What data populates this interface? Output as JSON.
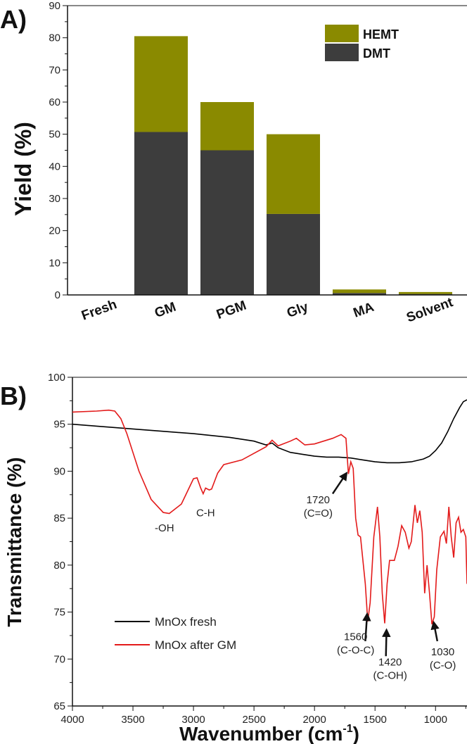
{
  "chart_data": [
    {
      "type": "bar",
      "stacked": true,
      "panel_label": "A)",
      "title": "",
      "xlabel": "",
      "ylabel": "Yield (%)",
      "ylim": [
        0,
        90
      ],
      "yticks": [
        "0",
        "10",
        "20",
        "30",
        "40",
        "50",
        "60",
        "70",
        "80",
        "90"
      ],
      "categories": [
        "Fresh",
        "GM",
        "PGM",
        "Gly",
        "MA",
        "Solvent"
      ],
      "series": [
        {
          "name": "DMT",
          "color": "#3d3d3d",
          "values": [
            0,
            50.7,
            45.0,
            25.2,
            0.6,
            0.3
          ]
        },
        {
          "name": "HEMT",
          "color": "#8a8a00",
          "values": [
            0,
            29.8,
            15.0,
            24.8,
            1.1,
            0.6
          ]
        }
      ],
      "legend": {
        "placement": "top-right",
        "entries": [
          "HEMT",
          "DMT"
        ]
      },
      "grid": false
    },
    {
      "type": "line",
      "panel_label": "B)",
      "xlabel": "Wavenumber (cm",
      "xlabel_sup": "-1",
      "xlabel_end": ")",
      "ylabel": "Transmittance (%)",
      "xlim": [
        4000,
        740
      ],
      "ylim": [
        65,
        100
      ],
      "xticks": [
        "4000",
        "3500",
        "3000",
        "2500",
        "2000",
        "1500",
        "1000"
      ],
      "yticks": [
        "65",
        "70",
        "75",
        "80",
        "85",
        "90",
        "95",
        "100"
      ],
      "grid": false,
      "legend": {
        "placement": "bottom-left",
        "entries": [
          "MnOx fresh",
          "MnOx after GM"
        ]
      },
      "series": [
        {
          "name": "MnOx fresh",
          "color": "#000000",
          "x": [
            4000,
            3800,
            3500,
            3200,
            3000,
            2700,
            2500,
            2400,
            2350,
            2300,
            2200,
            2100,
            2000,
            1900,
            1800,
            1700,
            1600,
            1500,
            1400,
            1300,
            1200,
            1100,
            1050,
            1000,
            950,
            900,
            850,
            800,
            770,
            740
          ],
          "y": [
            95,
            94.8,
            94.5,
            94.2,
            94,
            93.6,
            93.2,
            92.8,
            93.0,
            92.5,
            92.0,
            91.8,
            91.6,
            91.5,
            91.5,
            91.4,
            91.2,
            91.0,
            90.9,
            90.9,
            91.0,
            91.3,
            91.6,
            92.2,
            93.0,
            94.2,
            95.6,
            96.8,
            97.4,
            97.6
          ]
        },
        {
          "name": "MnOx after GM",
          "color": "#e31a1a",
          "x": [
            4000,
            3800,
            3700,
            3650,
            3600,
            3550,
            3450,
            3350,
            3250,
            3200,
            3100,
            3000,
            2970,
            2940,
            2920,
            2900,
            2870,
            2850,
            2800,
            2750,
            2600,
            2400,
            2350,
            2300,
            2200,
            2150,
            2080,
            2000,
            1850,
            1780,
            1740,
            1720,
            1700,
            1680,
            1660,
            1640,
            1620,
            1580,
            1560,
            1540,
            1510,
            1480,
            1460,
            1440,
            1420,
            1400,
            1380,
            1340,
            1310,
            1280,
            1250,
            1220,
            1200,
            1170,
            1150,
            1130,
            1110,
            1090,
            1070,
            1050,
            1030,
            1010,
            990,
            960,
            930,
            910,
            890,
            870,
            850,
            830,
            810,
            790,
            770,
            750,
            740
          ],
          "y": [
            96.3,
            96.4,
            96.5,
            96.4,
            95.6,
            94,
            90,
            87,
            85.6,
            85.5,
            86.5,
            89.2,
            89.3,
            88.2,
            87.6,
            88.2,
            88,
            88.1,
            89.8,
            90.7,
            91.2,
            92.6,
            93.3,
            92.7,
            93.2,
            93.5,
            92.8,
            92.9,
            93.5,
            93.9,
            93.5,
            89.7,
            91,
            90.3,
            85,
            83.2,
            83,
            78,
            74,
            76,
            83,
            86.2,
            83,
            77,
            73.8,
            78,
            80.5,
            80.5,
            82,
            84.2,
            83.5,
            81.8,
            82.5,
            86.4,
            84.5,
            85.8,
            83.5,
            77,
            80,
            77,
            73.7,
            74.5,
            79.5,
            83,
            83.6,
            82.3,
            86.2,
            83,
            80.8,
            84.5,
            85.1,
            83.5,
            83.8,
            83,
            78
          ]
        }
      ],
      "annotations": [
        {
          "lines": [
            "-OH"
          ],
          "x": 3240,
          "y": 83.6
        },
        {
          "lines": [
            "C-H"
          ],
          "x": 2900,
          "y": 85.2
        },
        {
          "lines": [
            "1720",
            "(C=O)"
          ],
          "x": 1970,
          "y": 86.6,
          "arrow": [
            1850,
            87.6,
            1735,
            89.8
          ]
        },
        {
          "lines": [
            "1560",
            "(C-O-C)"
          ],
          "x": 1660,
          "y": 72.0,
          "arrow": [
            1580,
            71.9,
            1565,
            74.8
          ]
        },
        {
          "lines": [
            "1420",
            "(C-OH)"
          ],
          "x": 1375,
          "y": 69.3,
          "arrow": [
            1410,
            70.3,
            1405,
            73.1
          ]
        },
        {
          "lines": [
            "1030",
            "(C-O)"
          ],
          "x": 940,
          "y": 70.4,
          "arrow": [
            985,
            71.9,
            1015,
            73.9
          ]
        }
      ]
    }
  ]
}
